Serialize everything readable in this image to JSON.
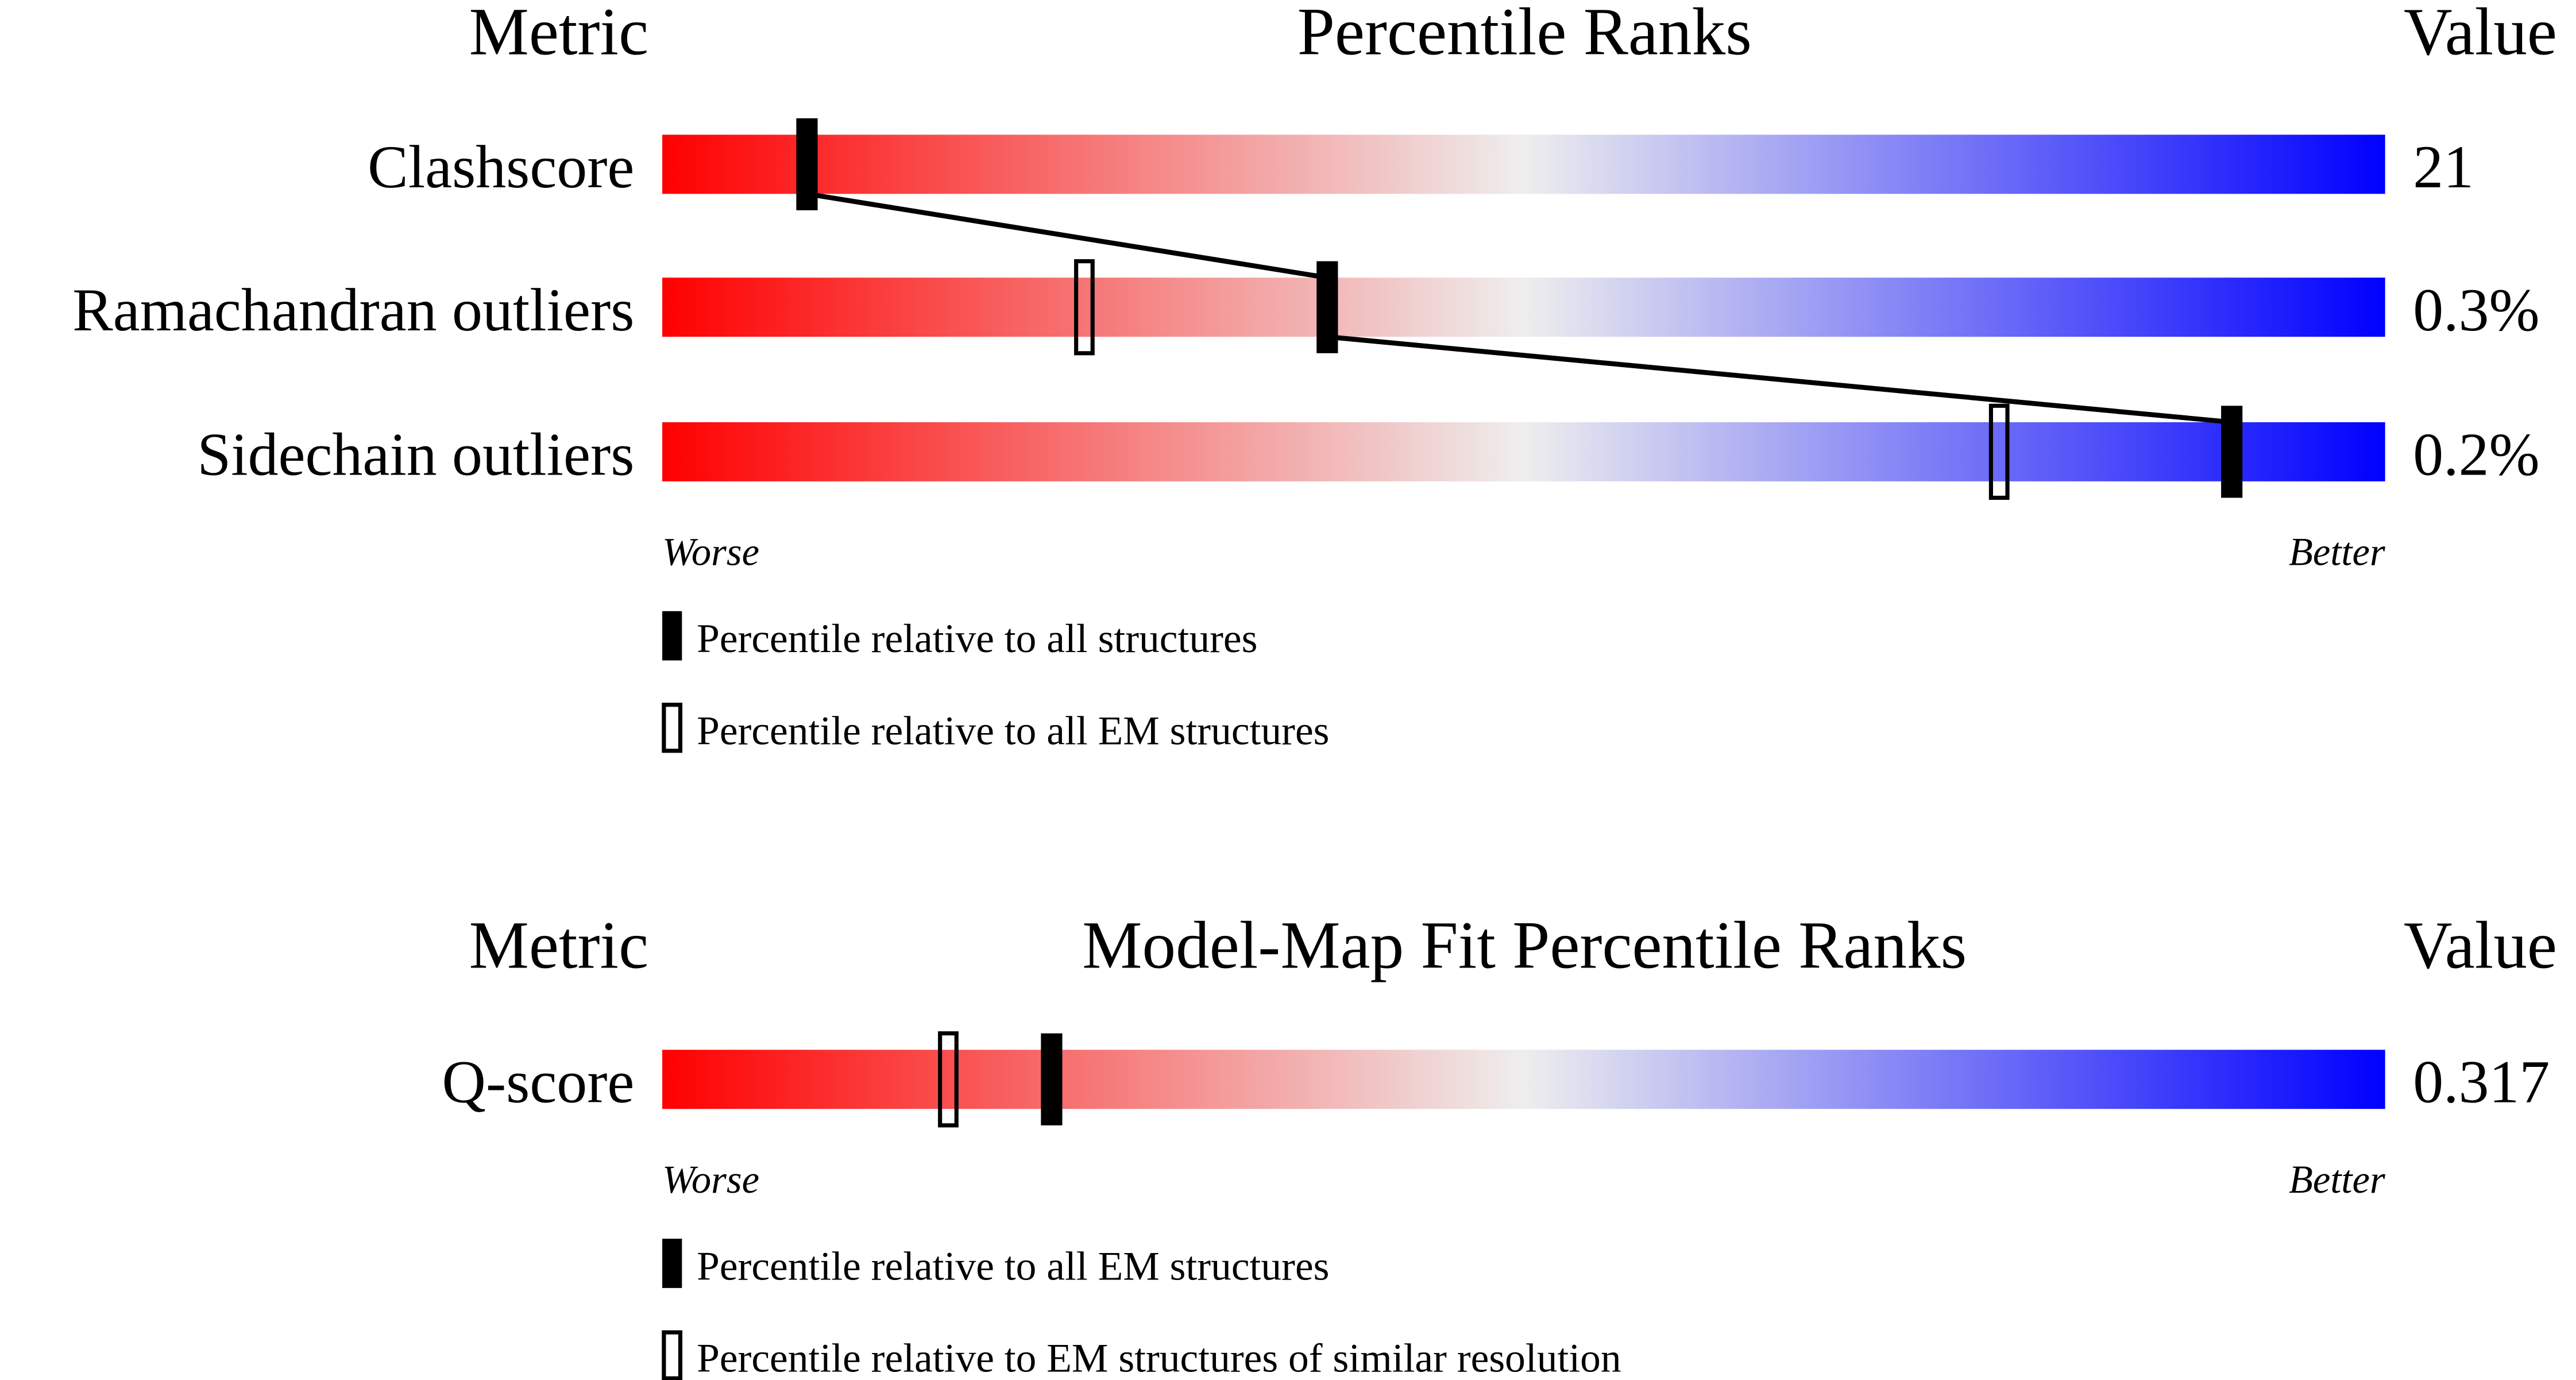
{
  "chart_data": [
    {
      "type": "percentile-bar",
      "header": {
        "metric": "Metric",
        "title": "Percentile Ranks",
        "value": "Value"
      },
      "xlim": [
        0,
        100
      ],
      "rows": [
        {
          "metric": "Clashscore",
          "value": "21",
          "percentile_all": 8.4,
          "percentile_em": null
        },
        {
          "metric": "Ramachandran outliers",
          "value": "0.3%",
          "percentile_all": 38.6,
          "percentile_em": 24.5
        },
        {
          "metric": "Sidechain outliers",
          "value": "0.2%",
          "percentile_all": 91.1,
          "percentile_em": 77.6
        }
      ],
      "worse_label": "Worse",
      "better_label": "Better",
      "legend": {
        "filled": "Percentile relative to all structures",
        "open": "Percentile relative to all EM structures"
      },
      "connect_filled_markers": true
    },
    {
      "type": "percentile-bar",
      "header": {
        "metric": "Metric",
        "title": "Model-Map Fit Percentile Ranks",
        "value": "Value"
      },
      "xlim": [
        0,
        100
      ],
      "rows": [
        {
          "metric": "Q-score",
          "value": "0.317",
          "percentile_all": 22.6,
          "percentile_em": 16.6
        }
      ],
      "worse_label": "Worse",
      "better_label": "Better",
      "legend": {
        "filled": "Percentile relative to all EM structures",
        "open": "Percentile relative to EM structures of similar resolution"
      },
      "connect_filled_markers": false
    }
  ],
  "colors": {
    "worse": "#ff0000",
    "middle": "#eeeeee",
    "better": "#0000ff",
    "marker": "#000000"
  }
}
